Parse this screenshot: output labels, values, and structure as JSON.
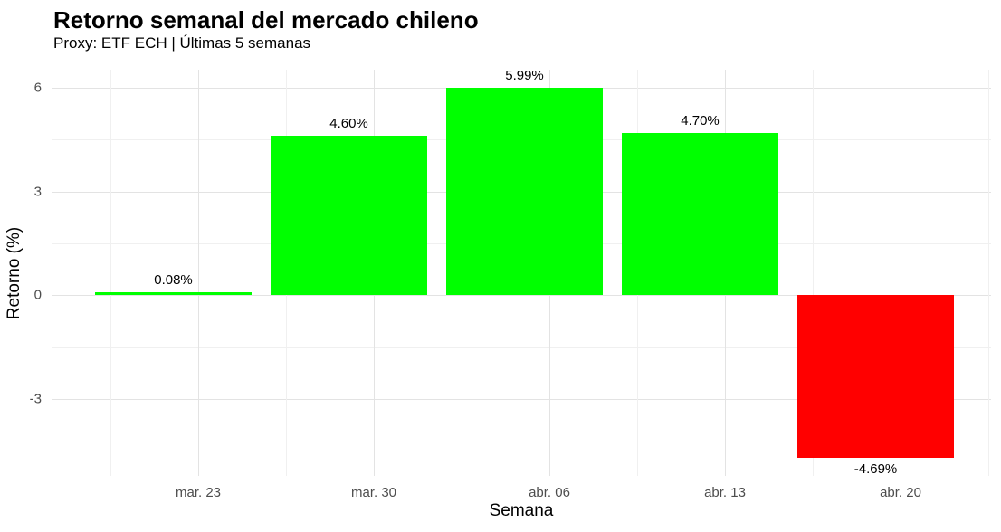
{
  "chart_data": {
    "type": "bar",
    "title": "Retorno semanal del mercado chileno",
    "subtitle": "Proxy: ETF ECH | Últimas 5 semanas",
    "xlabel": "Semana",
    "ylabel": "Retorno (%)",
    "categories": [
      "mar. 23",
      "mar. 30",
      "abr. 06",
      "abr. 13",
      "abr. 20"
    ],
    "values": [
      0.08,
      4.6,
      5.99,
      4.7,
      -4.69
    ],
    "bar_labels": [
      "0.08%",
      "4.60%",
      "5.99%",
      "4.70%",
      "-4.69%"
    ],
    "yticks": [
      6,
      3,
      0,
      -3
    ],
    "yticks_minor": [
      4.5,
      1.5,
      -1.5,
      -4.5
    ],
    "ylim": [
      -5.22,
      6.52
    ],
    "grid": "major+minor",
    "legend": "none",
    "colors": {
      "positive": "#00ff00",
      "negative": "#ff0000",
      "grid_major": "#e3e3e3",
      "grid_minor": "#f0f0f0",
      "axis_text": "#4d4d4d",
      "text": "#000000",
      "background": "#ffffff"
    }
  }
}
